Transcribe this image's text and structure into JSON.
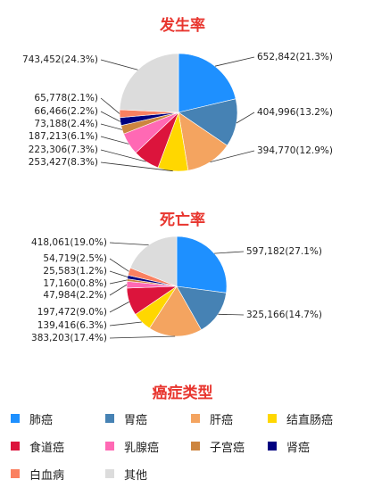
{
  "chart_data": [
    {
      "type": "pie",
      "title": "发生率",
      "slices": [
        {
          "category": "肺癌",
          "value": 652842,
          "label": "652,842(21.3%)"
        },
        {
          "category": "胃癌",
          "value": 404996,
          "label": "404,996(13.2%)"
        },
        {
          "category": "肝癌",
          "value": 394770,
          "label": "394,770(12.9%)"
        },
        {
          "category": "结直肠癌",
          "value": 253427,
          "label": "253,427(8.3%)"
        },
        {
          "category": "食道癌",
          "value": 223306,
          "label": "223,306(7.3%)"
        },
        {
          "category": "乳腺癌",
          "value": 187213,
          "label": "187,213(6.1%)"
        },
        {
          "category": "子宫癌",
          "value": 73188,
          "label": "73,188(2.4%)"
        },
        {
          "category": "肾癌",
          "value": 66466,
          "label": "66,466(2.2%)"
        },
        {
          "category": "白血病",
          "value": 65778,
          "label": "65,778(2.1%)"
        },
        {
          "category": "其他",
          "value": 743452,
          "label": "743,452(24.3%)"
        }
      ]
    },
    {
      "type": "pie",
      "title": "死亡率",
      "slices": [
        {
          "category": "肺癌",
          "value": 597182,
          "label": "597,182(27.1%)"
        },
        {
          "category": "胃癌",
          "value": 325166,
          "label": "325,166(14.7%)"
        },
        {
          "category": "肝癌",
          "value": 383203,
          "label": "383,203(17.4%)"
        },
        {
          "category": "结直肠癌",
          "value": 139416,
          "label": "139,416(6.3%)"
        },
        {
          "category": "食道癌",
          "value": 197472,
          "label": "197,472(9.0%)"
        },
        {
          "category": "乳腺癌",
          "value": 47984,
          "label": "47,984(2.2%)"
        },
        {
          "category": "子宫癌",
          "value": 17160,
          "label": "17,160(0.8%)"
        },
        {
          "category": "肾癌",
          "value": 25583,
          "label": "25,583(1.2%)"
        },
        {
          "category": "白血病",
          "value": 54719,
          "label": "54,719(2.5%)"
        },
        {
          "category": "其他",
          "value": 418061,
          "label": "418,061(19.0%)"
        }
      ]
    }
  ],
  "legend": {
    "title": "癌症类型",
    "items": [
      {
        "label": "肺癌",
        "color": "#1e90ff"
      },
      {
        "label": "胃癌",
        "color": "#4682b4"
      },
      {
        "label": "肝癌",
        "color": "#f4a460"
      },
      {
        "label": "结直肠癌",
        "color": "#ffd700"
      },
      {
        "label": "食道癌",
        "color": "#dc143c"
      },
      {
        "label": "乳腺癌",
        "color": "#ff69b4"
      },
      {
        "label": "子宫癌",
        "color": "#cd853f"
      },
      {
        "label": "肾癌",
        "color": "#000080"
      },
      {
        "label": "白血病",
        "color": "#fa8060"
      },
      {
        "label": "其他",
        "color": "#dcdcdc"
      }
    ]
  }
}
